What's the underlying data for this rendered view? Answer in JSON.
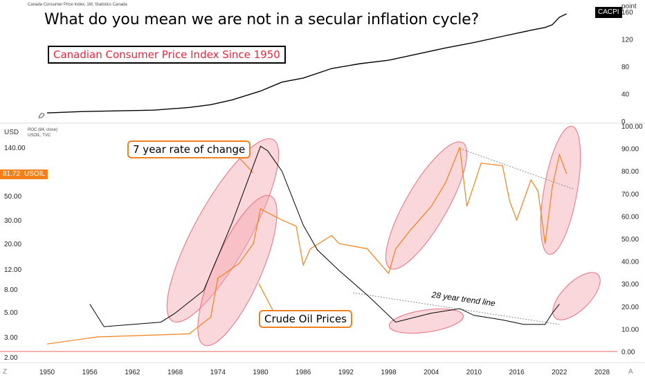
{
  "header": {
    "source": "Canada Consumer Price Index, 1M, Statistics Canada",
    "headline": "What do you mean we are not in a secular inflation cycle?",
    "subtitle": "Canadian Consumer Price Index Since 1950"
  },
  "top_pane": {
    "symbol": "CACPI",
    "unit": "point",
    "y_ticks": [
      "160",
      "120",
      "80",
      "40",
      "0"
    ]
  },
  "bottom_pane": {
    "currency": "USD",
    "indicator_line1": "ROC (84, close)",
    "indicator_line2": "USOIL, TVC",
    "price_value": "81.72",
    "price_symbol": "USOIL",
    "left_ticks": [
      "140.00",
      "50.00",
      "30.00",
      "20.00",
      "12.00",
      "8.00",
      "5.00",
      "3.00",
      "2.00"
    ],
    "right_ticks": [
      "100.00",
      "90.00",
      "80.00",
      "70.00",
      "60.00",
      "50.00",
      "40.00",
      "30.00",
      "20.00",
      "10.00",
      "0.00"
    ]
  },
  "x_axis": {
    "ticks": [
      "1950",
      "1956",
      "1962",
      "1968",
      "1974",
      "1980",
      "1986",
      "1992",
      "1998",
      "2004",
      "2010",
      "2016",
      "2022",
      "2028"
    ]
  },
  "annotations": {
    "roc_label": "7 year rate of change",
    "oil_label": "Crude Oil Prices",
    "trend_label": "28 year trend line"
  },
  "corners": {
    "left": "Z",
    "right": "A"
  },
  "colors": {
    "cpi": "#000000",
    "oil": "#f57f17",
    "roc": "#000000",
    "highlight": "#f4a7b0",
    "zero_line": "#f08080",
    "headline_red": "#e8253a"
  },
  "chart_data": [
    {
      "type": "line",
      "series": [
        {
          "name": "CACPI",
          "x": [
            1950,
            1955,
            1960,
            1965,
            1970,
            1973,
            1976,
            1980,
            1983,
            1986,
            1990,
            1994,
            1998,
            2002,
            2006,
            2010,
            2014,
            2018,
            2020,
            2021,
            2022,
            2023
          ],
          "y": [
            12,
            14,
            15,
            16,
            20,
            24,
            31,
            44,
            57,
            63,
            77,
            84,
            89,
            98,
            107,
            115,
            124,
            133,
            137,
            141,
            152,
            157
          ]
        }
      ],
      "ylim": [
        0,
        160
      ]
    },
    {
      "type": "line",
      "series": [
        {
          "name": "USOIL",
          "x": [
            1950,
            1957,
            1970,
            1971,
            1973,
            1974,
            1975,
            1977,
            1979,
            1980,
            1981,
            1983,
            1985,
            1986,
            1987,
            1990,
            1991,
            1995,
            1998,
            1999,
            2001,
            2004,
            2006,
            2008,
            2009,
            2011,
            2014,
            2015,
            2016,
            2018,
            2019,
            2020,
            2021,
            2022,
            2023
          ],
          "y": [
            2.6,
            3.0,
            3.2,
            3.6,
            4.5,
            10,
            11,
            13.5,
            20,
            38,
            35,
            30,
            27,
            13,
            18,
            23,
            20,
            18,
            11,
            18,
            25,
            40,
            66,
            140,
            40,
            100,
            95,
            45,
            30,
            70,
            55,
            20,
            60,
            120,
            80
          ]
        },
        {
          "name": "ROC (84, close)",
          "x": [
            1956,
            1958,
            1962,
            1966,
            1968,
            1972,
            1976,
            1980,
            1981,
            1983,
            1986,
            1988,
            1991,
            1995,
            1999,
            2004,
            2008,
            2010,
            2014,
            2017,
            2020,
            2021,
            2022
          ],
          "y": [
            21,
            11,
            12,
            13,
            17,
            27,
            57,
            91,
            89,
            80,
            56,
            45,
            36,
            25,
            13,
            17,
            19,
            16,
            14,
            12,
            12,
            17,
            21
          ]
        }
      ],
      "y_left_ticks": [
        140,
        50,
        30,
        20,
        12,
        8,
        5,
        3,
        2
      ],
      "y_right_range": [
        0,
        100
      ],
      "trend_lines": [
        {
          "label": "28 year trend line",
          "from": [
            1993,
            26
          ],
          "to": [
            2022,
            12
          ]
        },
        {
          "from": [
            2008,
            90
          ],
          "to": [
            2024,
            72
          ]
        }
      ]
    }
  ]
}
